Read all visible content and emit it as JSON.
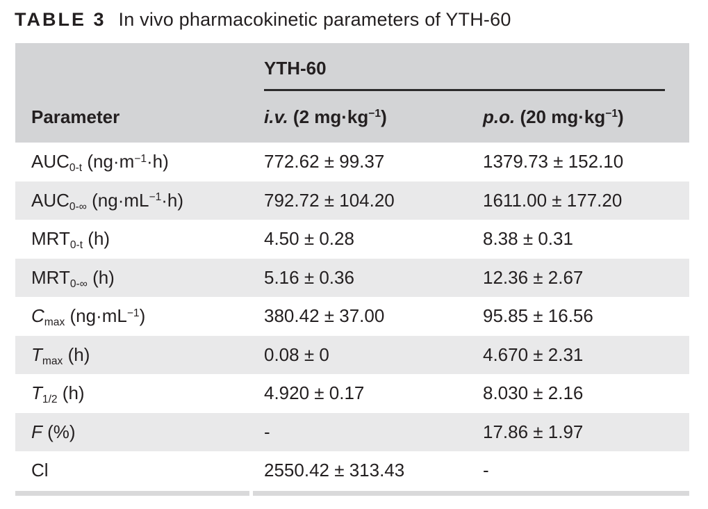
{
  "title": {
    "label": "TABLE 3",
    "text": "In vivo pharmacokinetic parameters of YTH-60"
  },
  "table": {
    "group_header": "YTH-60",
    "columns": {
      "parameter": "Parameter",
      "iv": "<i>i.v.</i> (2 mg·kg<sup>−1</sup>)",
      "po": "<i>p.o.</i> (20 mg·kg<sup>−1</sup>)"
    },
    "rows": [
      {
        "param": "AUC<sub>0-t</sub> (ng·m<sup>−1</sup>·h)",
        "iv": "772.62 ± 99.37",
        "po": "1379.73 ± 152.10"
      },
      {
        "param": "AUC<sub>0-∞</sub> (ng·mL<sup>−1</sup>·h)",
        "iv": "792.72 ± 104.20",
        "po": "1611.00 ± 177.20"
      },
      {
        "param": "MRT<sub>0-t</sub> (h)",
        "iv": "4.50 ± 0.28",
        "po": "8.38 ± 0.31"
      },
      {
        "param": "MRT<sub>0-∞</sub> (h)",
        "iv": "5.16 ± 0.36",
        "po": "12.36 ± 2.67"
      },
      {
        "param": "<i>C</i><sub>max</sub> (ng·mL<sup>−1</sup>)",
        "iv": "380.42 ± 37.00",
        "po": "95.85 ± 16.56"
      },
      {
        "param": "<i>T</i><sub>max</sub> (h)",
        "iv": "0.08 ± 0",
        "po": "4.670 ± 2.31"
      },
      {
        "param": "<i>T</i><sub>1/2</sub> (h)",
        "iv": "4.920 ± 0.17",
        "po": "8.030 ± 2.16"
      },
      {
        "param": "<i>F</i> (%)",
        "iv": "-",
        "po": "17.86 ± 1.97"
      },
      {
        "param": "Cl",
        "iv": "2550.42 ± 313.43",
        "po": "-"
      }
    ]
  },
  "colors": {
    "header_bg": "#d3d4d6",
    "row_alt_bg": "#e9e9ea",
    "text": "#231f20",
    "rule": "#2b2a2b",
    "bottom_strip": "#d9d9da",
    "page_bg": "#ffffff"
  }
}
